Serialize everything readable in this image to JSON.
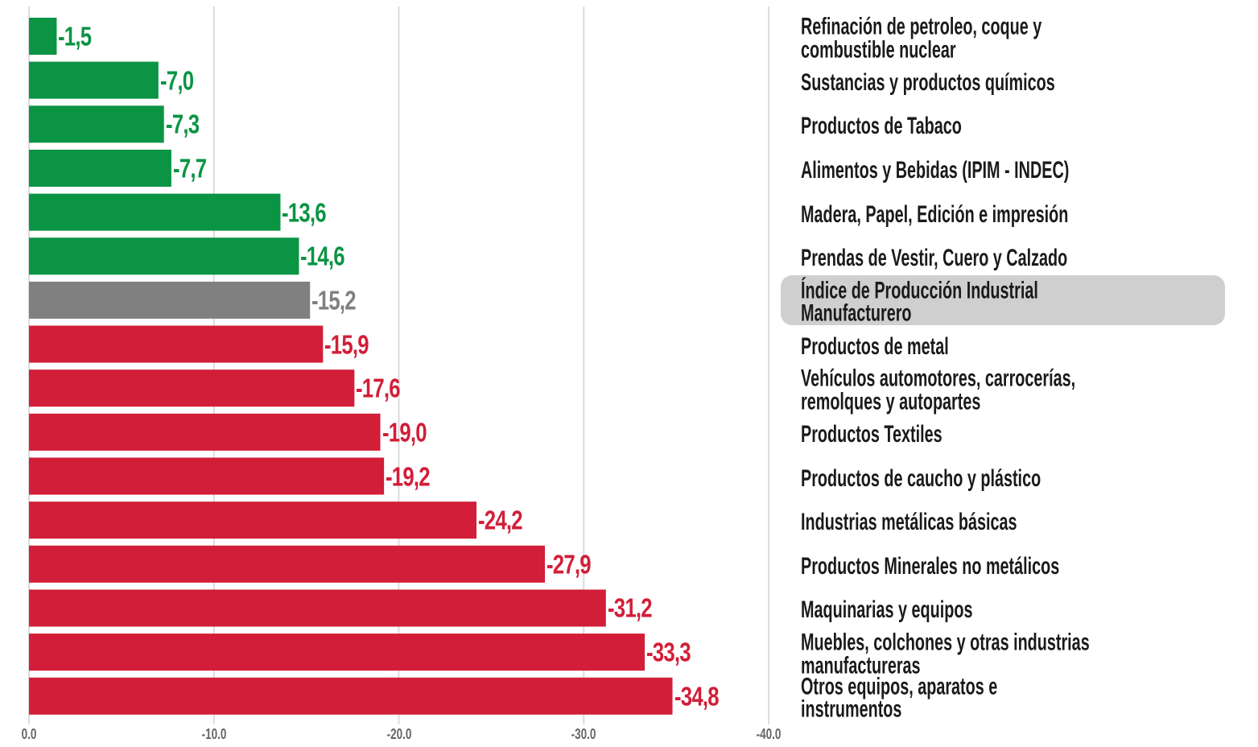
{
  "chart_data": {
    "type": "barh",
    "categories": [
      "Refinación de petroleo, coque y combustible nuclear",
      "Sustancias y productos químicos",
      "Productos de Tabaco",
      "Alimentos y Bebidas (IPIM - INDEC)",
      "Madera, Papel, Edición e impresión",
      "Prendas de Vestir, Cuero y Calzado",
      "Índice de Producción Industrial Manufacturero",
      "Productos de metal",
      "Vehículos automotores, carrocerías,\nremolques y autopartes",
      "Productos Textiles",
      "Productos de caucho y plástico",
      "Industrias metálicas básicas",
      "Productos Minerales no metálicos",
      "Maquinarias y equipos",
      "Muebles, colchones y otras industrias\nmanufactureras",
      "Otros equipos, aparatos e instrumentos"
    ],
    "values": [
      -1.5,
      -7.0,
      -7.3,
      -7.7,
      -13.6,
      -14.6,
      -15.2,
      -15.9,
      -17.6,
      -19.0,
      -19.2,
      -24.2,
      -27.9,
      -31.2,
      -33.3,
      -34.8
    ],
    "value_labels": [
      "-1,5",
      "-7,0",
      "-7,3",
      "-7,7",
      "-13,6",
      "-14,6",
      "-15,2",
      "-15,9",
      "-17,6",
      "-19,0",
      "-19,2",
      "-24,2",
      "-27,9",
      "-31,2",
      "-33,3",
      "-34,8"
    ],
    "colors": [
      "#0b9444",
      "#0b9444",
      "#0b9444",
      "#0b9444",
      "#0b9444",
      "#0b9444",
      "#808080",
      "#d21e38",
      "#d21e38",
      "#d21e38",
      "#d21e38",
      "#d21e38",
      "#d21e38",
      "#d21e38",
      "#d21e38",
      "#d21e38"
    ],
    "highlight": 6,
    "xlim": [
      0,
      -40
    ],
    "xticks": [
      {
        "value": 0,
        "label": "0.0"
      },
      {
        "value": -10,
        "label": "-10.0"
      },
      {
        "value": -20,
        "label": "-20.0"
      },
      {
        "value": -30,
        "label": "-30.0"
      },
      {
        "value": -40,
        "label": "-40.0"
      }
    ],
    "grid": true
  }
}
